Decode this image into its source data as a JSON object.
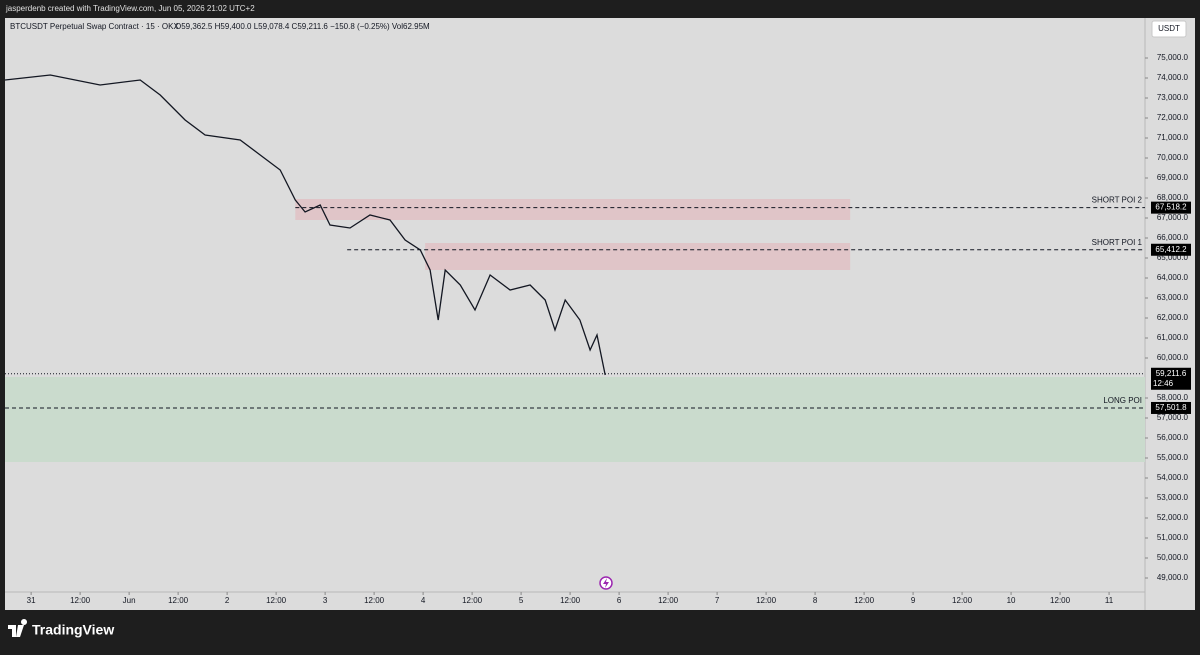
{
  "chart_data": {
    "type": "line",
    "header": "jasperdenb created with TradingView.com, Jun 05, 2026 21:02 UTC+2",
    "legend": "BTCUSDT Perpetual Swap Contract · 15 · OKX",
    "ohlc": "O59,362.5 H59,400.0 L59,078.4 C59,211.6 −150.8 (−0.25%) Vol62.95M",
    "currency": "USDT",
    "brand": "TradingView",
    "color": "#131722",
    "x": [
      -6.4,
      4.7,
      16.9,
      26.7,
      31.6,
      37.7,
      42.6,
      51.2,
      56.1,
      61,
      64.7,
      67.1,
      70.8,
      73.2,
      78.1,
      83,
      87.9,
      91.6,
      95.3,
      97.7,
      99.7,
      101.4,
      105.1,
      108.7,
      112.4,
      117.3,
      122.2,
      125.9,
      128.3,
      130.8,
      134.4,
      136.9,
      138.6,
      140.6
    ],
    "values": [
      73900,
      74150,
      73650,
      73900,
      73150,
      71900,
      71150,
      70900,
      70150,
      69400,
      67900,
      67300,
      67650,
      66650,
      66500,
      67150,
      66900,
      65900,
      65400,
      64400,
      61900,
      64400,
      63650,
      62400,
      64150,
      63400,
      63650,
      62900,
      61400,
      62900,
      61900,
      60400,
      61150,
      59150
    ],
    "xlim": [
      -6.4,
      272.8
    ],
    "xticks": [
      {
        "value": 0,
        "label": "31"
      },
      {
        "value": 12,
        "label": "12:00"
      },
      {
        "value": 24,
        "label": "Jun"
      },
      {
        "value": 36,
        "label": "12:00"
      },
      {
        "value": 48,
        "label": "2"
      },
      {
        "value": 60,
        "label": "12:00"
      },
      {
        "value": 72,
        "label": "3"
      },
      {
        "value": 84,
        "label": "12:00"
      },
      {
        "value": 96,
        "label": "4"
      },
      {
        "value": 108,
        "label": "12:00"
      },
      {
        "value": 120,
        "label": "5"
      },
      {
        "value": 132,
        "label": "12:00"
      },
      {
        "value": 144,
        "label": "6"
      },
      {
        "value": 156,
        "label": "12:00"
      },
      {
        "value": 168,
        "label": "7"
      },
      {
        "value": 180,
        "label": "12:00"
      },
      {
        "value": 192,
        "label": "8"
      },
      {
        "value": 204,
        "label": "12:00"
      },
      {
        "value": 216,
        "label": "9"
      },
      {
        "value": 228,
        "label": "12:00"
      },
      {
        "value": 240,
        "label": "10"
      },
      {
        "value": 252,
        "label": "12:00"
      },
      {
        "value": 264,
        "label": "11"
      }
    ],
    "ylim": [
      48400,
      77000
    ],
    "yticks": [
      {
        "value": 49000,
        "label": "49,000.0"
      },
      {
        "value": 50000,
        "label": "50,000.0"
      },
      {
        "value": 51000,
        "label": "51,000.0"
      },
      {
        "value": 52000,
        "label": "52,000.0"
      },
      {
        "value": 53000,
        "label": "53,000.0"
      },
      {
        "value": 54000,
        "label": "54,000.0"
      },
      {
        "value": 55000,
        "label": "55,000.0"
      },
      {
        "value": 56000,
        "label": "56,000.0"
      },
      {
        "value": 57000,
        "label": "57,000.0"
      },
      {
        "value": 58000,
        "label": "58,000.0"
      },
      {
        "value": 60000,
        "label": "60,000.0"
      },
      {
        "value": 61000,
        "label": "61,000.0"
      },
      {
        "value": 62000,
        "label": "62,000.0"
      },
      {
        "value": 63000,
        "label": "63,000.0"
      },
      {
        "value": 64000,
        "label": "64,000.0"
      },
      {
        "value": 65000,
        "label": "65,000.0"
      },
      {
        "value": 66000,
        "label": "66,000.0"
      },
      {
        "value": 67000,
        "label": "67,000.0"
      },
      {
        "value": 68000,
        "label": "68,000.0"
      },
      {
        "value": 69000,
        "label": "69,000.0"
      },
      {
        "value": 70000,
        "label": "70,000.0"
      },
      {
        "value": 71000,
        "label": "71,000.0"
      },
      {
        "value": 72000,
        "label": "72,000.0"
      },
      {
        "value": 73000,
        "label": "73,000.0"
      },
      {
        "value": 74000,
        "label": "74,000.0"
      },
      {
        "value": 75000,
        "label": "75,000.0"
      }
    ],
    "zones": [
      {
        "top": 67950,
        "bottom": 66900,
        "start": 64.7,
        "end": 200.6,
        "color": "#e0c5c8"
      },
      {
        "top": 65750,
        "bottom": 64400,
        "start": 96.5,
        "end": 200.6,
        "color": "#e0c5c8"
      },
      {
        "top": 59050,
        "bottom": 54800,
        "start": -6.4,
        "end": 272.8,
        "color": "#cadbcd"
      }
    ],
    "price_lines": [
      {
        "name": "SHORT POI 2",
        "value": 67518.2,
        "label": "67,518.2",
        "start": 64.7
      },
      {
        "name": "SHORT POI 1",
        "value": 65412.2,
        "label": "65,412.2",
        "start": 77.4
      },
      {
        "name": "LONG POI",
        "value": 57501.8,
        "label": "57,501.8",
        "start": -6.4
      }
    ],
    "last_price": {
      "value": 59211.6,
      "label": "59,211.6",
      "countdown": "12:46"
    }
  }
}
